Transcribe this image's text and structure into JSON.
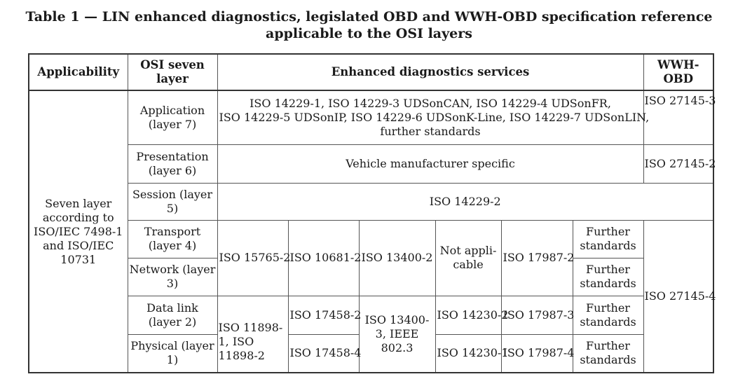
{
  "title": {
    "line1": "Table 1 — LIN enhanced diagnostics, legislated OBD and WWH-OBD specification reference",
    "line2": "applicable to the OSI layers"
  },
  "headers": {
    "applicability": "Applicability",
    "osi": "OSI seven layer",
    "services": "Enhanced diagnostics services",
    "wwh": "WWH-OBD"
  },
  "applicability": "Seven layer according to ISO/IEC 7498-1 and ISO/IEC 10731",
  "layers": {
    "application": "Application (layer 7)",
    "presentation": "Presentation (layer 6)",
    "session": "Session (layer 5)",
    "transport": "Transport (layer 4)",
    "network": "Network (layer 3)",
    "datalink": "Data link (layer 2)",
    "physical": "Physical (layer 1)"
  },
  "services": {
    "application_line1": "ISO 14229-1, ISO 14229-3 UDSonCAN, ISO 14229-4 UDSonFR,",
    "application_line2": "ISO 14229-5 UDSonIP, ISO 14229-6 UDSonK-Line, ISO 14229-7 UDSonLIN,",
    "application_line3": "further standards",
    "presentation": "Vehicle manufacturer specific",
    "session": "ISO 14229-2",
    "tn_col1": "ISO 15765-2",
    "tn_col2": "ISO 10681-2",
    "tn_col3": "ISO 13400-2",
    "tn_col4": "Not appli- cable",
    "tn_col5": "ISO 17987-2",
    "transport_col6": "Further standards",
    "network_col6": "Further standards",
    "dp_col1": "ISO 11898-1, ISO 11898-2",
    "datalink_col2": "ISO 17458-2",
    "physical_col2": "ISO 17458-4",
    "dp_col3": "ISO 13400-3, IEEE 802.3",
    "datalink_col4": "ISO 14230-2",
    "physical_col4": "ISO 14230-1",
    "datalink_col5": "ISO 17987-3",
    "physical_col5": "ISO 17987-4",
    "datalink_col6": "Further standards",
    "physical_col6": "Further standards"
  },
  "wwh": {
    "application": "ISO 27145-3",
    "presentation": "ISO 27145-2",
    "lower": "ISO 27145-4"
  }
}
